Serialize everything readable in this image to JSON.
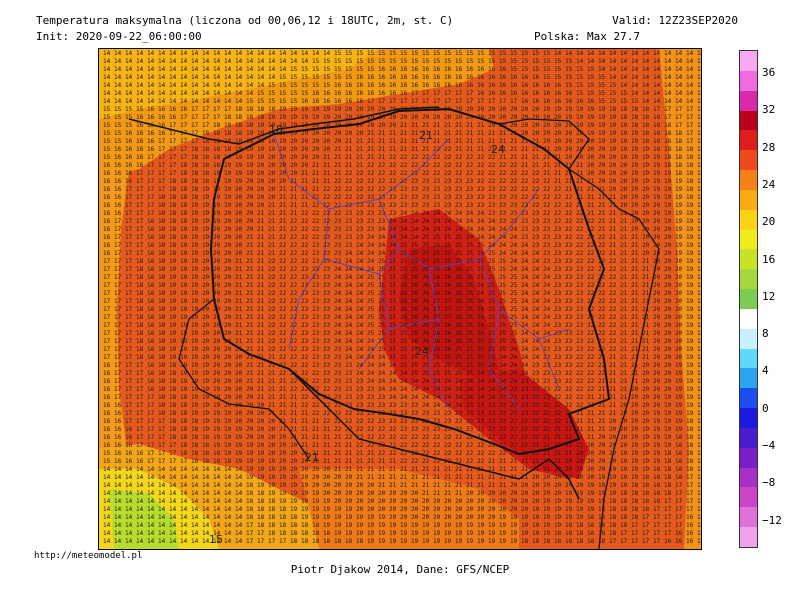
{
  "header": {
    "title": "Temperatura maksymalna (liczona od 00,06,12 i 18UTC, 2m, st. C)",
    "init": "Init: 2020-09-22_06:00:00",
    "valid": "Valid: 12Z23SEP2020",
    "poland_max": "Polska: Max 27.7"
  },
  "map": {
    "type": "temperature field over Poland",
    "contour_labels": [
      "18",
      "24",
      "21",
      "24",
      "21",
      "15"
    ]
  },
  "colorbar": {
    "ticks": [
      "36",
      "32",
      "28",
      "24",
      "20",
      "16",
      "12",
      "8",
      "4",
      "0",
      "−4",
      "−8",
      "−12"
    ],
    "colors": [
      "#f6a8f0",
      "#ee6ae0",
      "#d82aa8",
      "#b80018",
      "#de1e1e",
      "#ee4a1a",
      "#f48018",
      "#f8aa14",
      "#fed214",
      "#f0ec1c",
      "#c8e228",
      "#a6d83c",
      "#7ccc54",
      "#ffffff",
      "#c8f0ff",
      "#62d8f8",
      "#2aa4ec",
      "#1a4ef0",
      "#1a1ae0",
      "#4a1cd0",
      "#7a1ec8",
      "#a82ec8",
      "#cc44c8",
      "#e070d8",
      "#f0a2ec"
    ]
  },
  "footer": {
    "url": "http://meteomodel.pl",
    "credit": "Piotr Djakow 2014, Dane: GFS/NCEP"
  }
}
